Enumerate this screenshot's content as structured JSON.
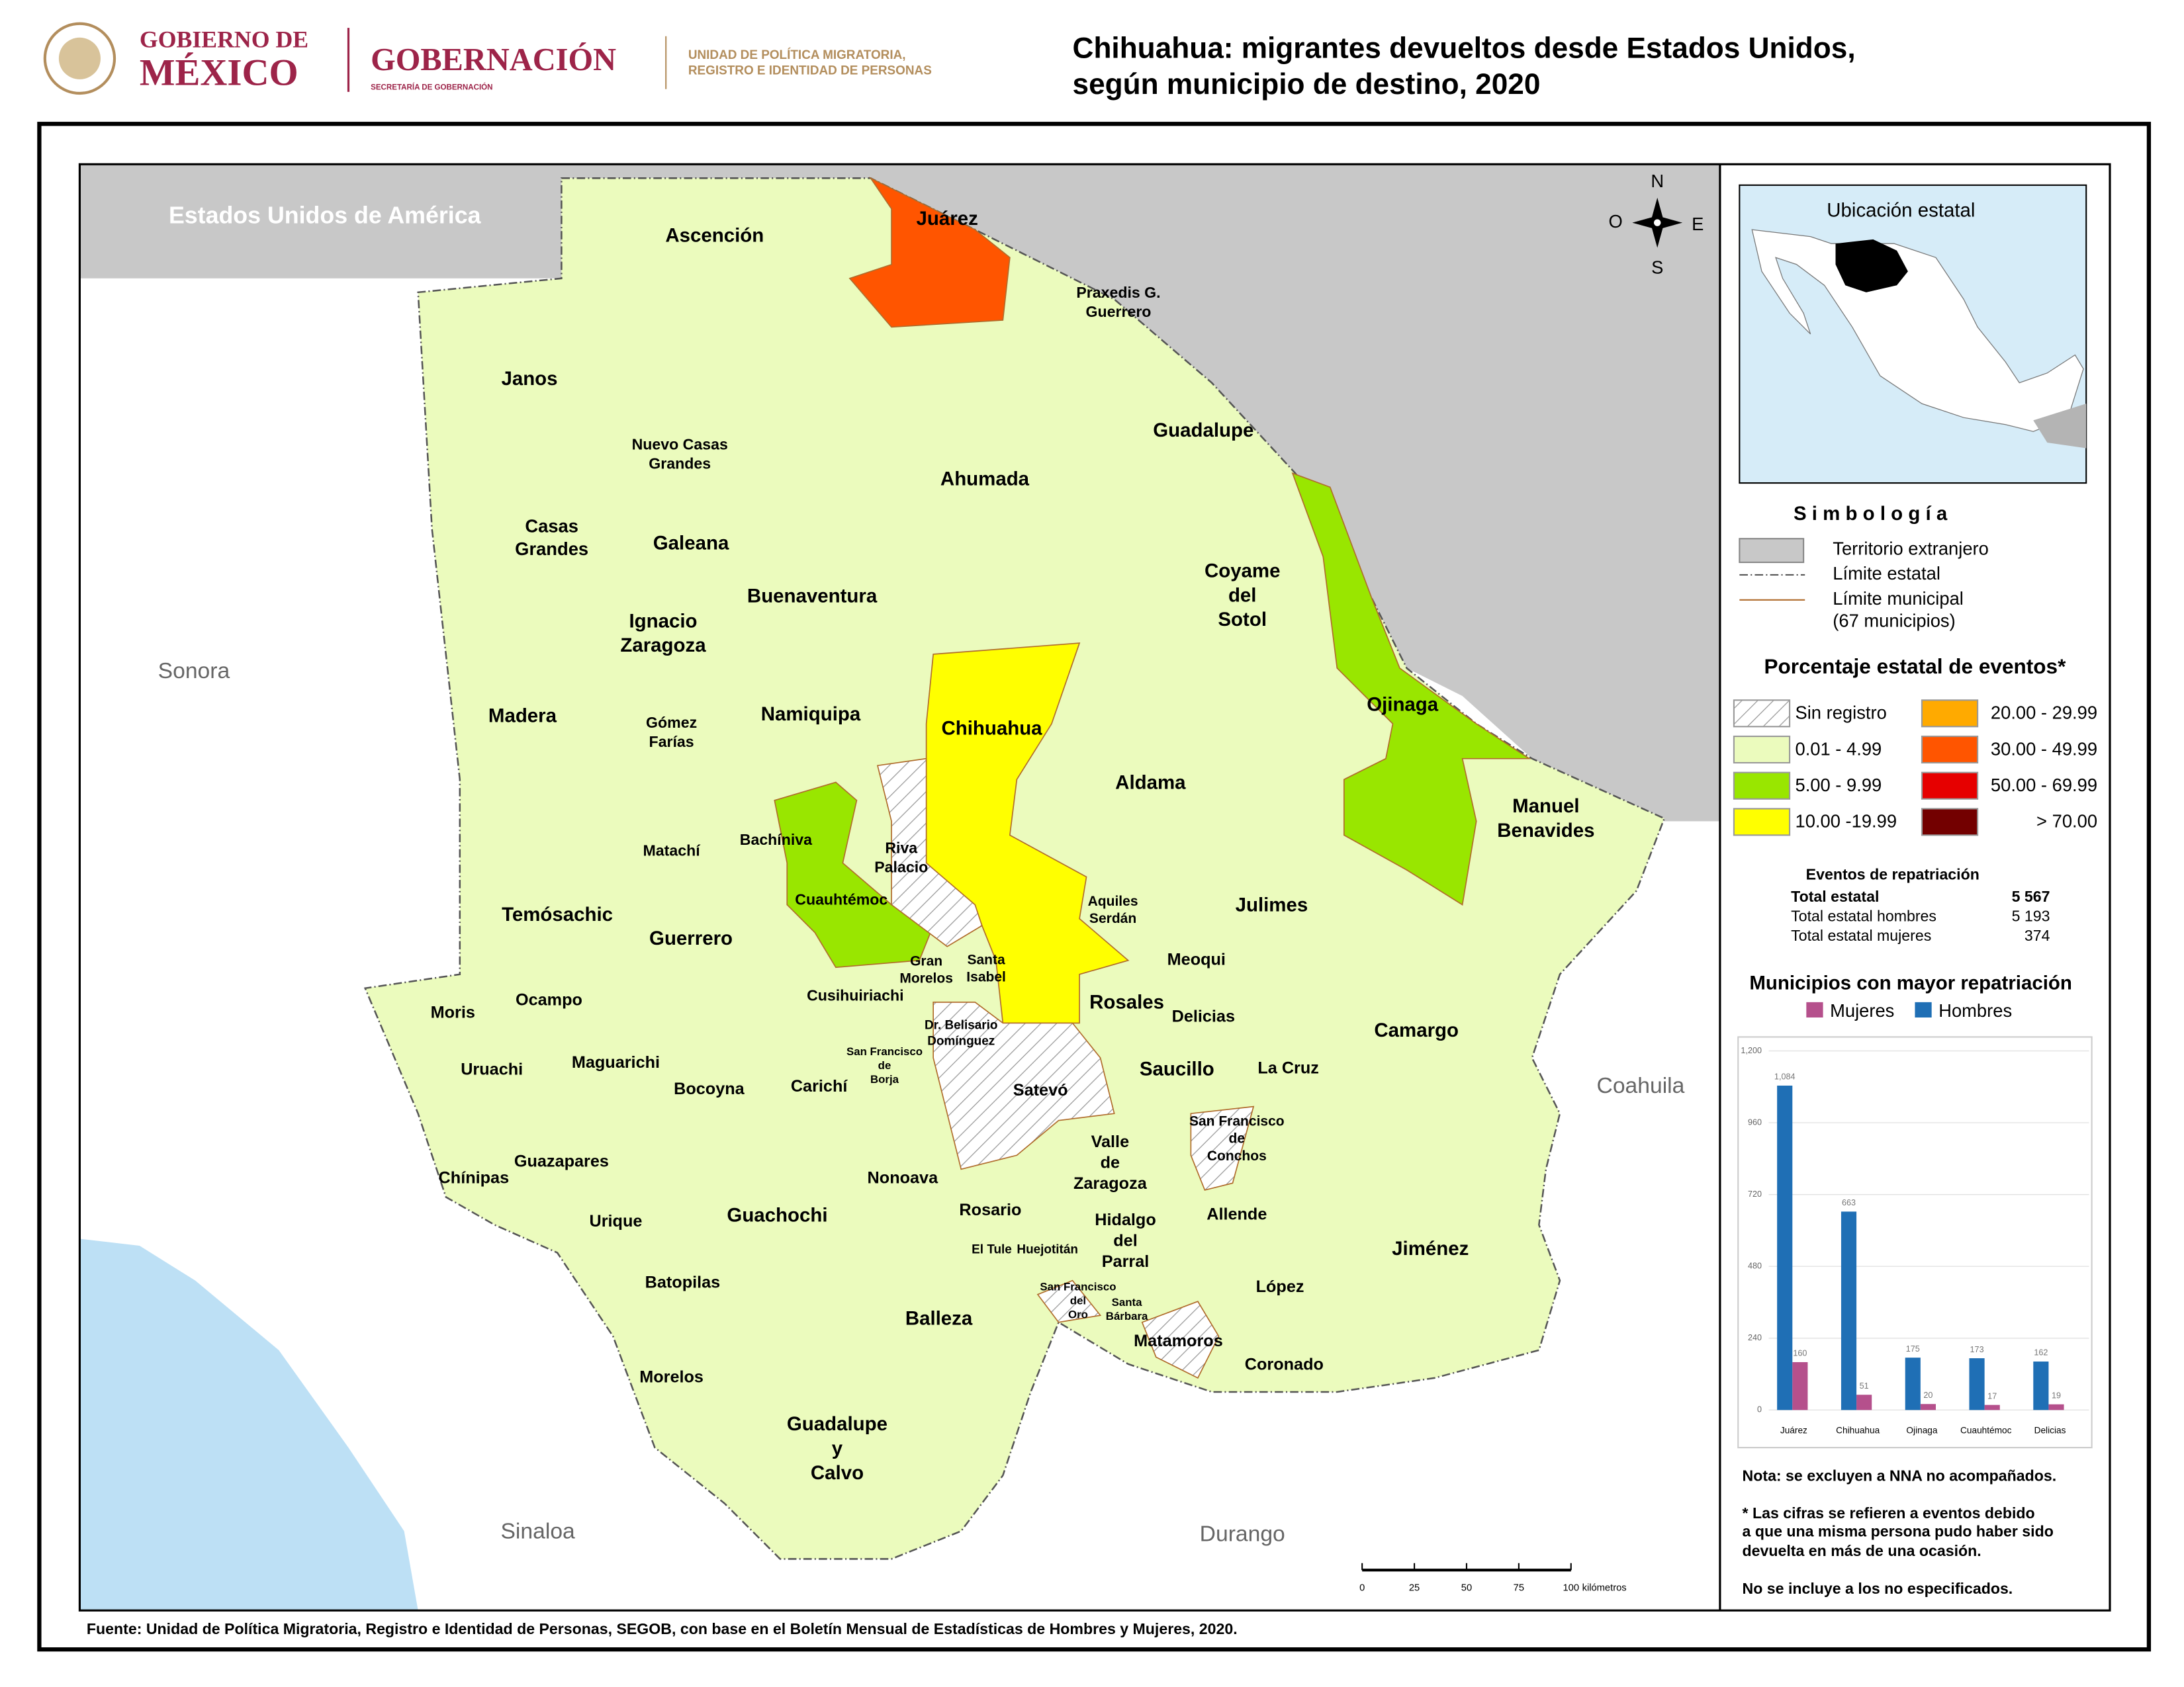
{
  "header": {
    "logo_lines": [
      "GOBIERNO DE",
      "MÉXICO"
    ],
    "secretaria": "GOBERNACIÓN",
    "secretaria_sub": "SECRETARÍA DE GOBERNACIÓN",
    "unit_lines": [
      "UNIDAD DE POLÍTICA MIGRATORIA,",
      "REGISTRO E IDENTIDAD DE PERSONAS"
    ]
  },
  "title_lines": [
    "Chihuahua: migrantes devueltos desde Estados Unidos,",
    "según municipio de destino, 2020"
  ],
  "map": {
    "neighbors": [
      "Estados Unidos de América",
      "Sonora",
      "Coahuila",
      "Sinaloa",
      "Durango"
    ],
    "compass": {
      "n": "N",
      "s": "S",
      "o": "O",
      "e": "E"
    },
    "scale": {
      "ticks": [
        0,
        25,
        50,
        75,
        100
      ],
      "unit": "kilómetros"
    },
    "municipalities": [
      [
        "Ascención"
      ],
      [
        "Juárez"
      ],
      [
        "Praxedis G.",
        "Guerrero"
      ],
      [
        "Janos"
      ],
      [
        "Nuevo Casas",
        "Grandes"
      ],
      [
        "Guadalupe"
      ],
      [
        "Ahumada"
      ],
      [
        "Casas",
        "Grandes"
      ],
      [
        "Galeana"
      ],
      [
        "Coyame",
        "del",
        "Sotol"
      ],
      [
        "Buenaventura"
      ],
      [
        "Ignacio",
        "Zaragoza"
      ],
      [
        "Madera"
      ],
      [
        "Gómez",
        "Farías"
      ],
      [
        "Namiquipa"
      ],
      [
        "Chihuahua"
      ],
      [
        "Ojinaga"
      ],
      [
        "Aldama"
      ],
      [
        "Manuel",
        "Benavides"
      ],
      [
        "Bachíniva"
      ],
      [
        "Riva",
        "Palacio"
      ],
      [
        "Matachí"
      ],
      [
        "Aquiles",
        "Serdán"
      ],
      [
        "Cuauhtémoc"
      ],
      [
        "Julimes"
      ],
      [
        "Temósachic"
      ],
      [
        "Guerrero"
      ],
      [
        "Meoqui"
      ],
      [
        "Gran",
        "Morelos"
      ],
      [
        "Santa",
        "Isabel"
      ],
      [
        "Cusihuiriachi"
      ],
      [
        "Rosales"
      ],
      [
        "Ocampo"
      ],
      [
        "Moris"
      ],
      [
        "Delicias"
      ],
      [
        "Dr. Belisario",
        "Domínguez"
      ],
      [
        "Camargo"
      ],
      [
        "San Francisco",
        "de",
        "Borja"
      ],
      [
        "Maguarichi"
      ],
      [
        "Uruachi"
      ],
      [
        "Saucillo"
      ],
      [
        "La Cruz"
      ],
      [
        "Satevó"
      ],
      [
        "Bocoyna"
      ],
      [
        "Carichí"
      ],
      [
        "San Francisco",
        "de",
        "Conchos"
      ],
      [
        "Valle",
        "de",
        "Zaragoza"
      ],
      [
        "Guazapares"
      ],
      [
        "Chínipas"
      ],
      [
        "Nonoava"
      ],
      [
        "Guachochi"
      ],
      [
        "Rosario"
      ],
      [
        "Allende"
      ],
      [
        "Hidalgo",
        "del",
        "Parral"
      ],
      [
        "Urique"
      ],
      [
        "Jiménez"
      ],
      [
        "El Tule"
      ],
      [
        "Huejotitán"
      ],
      [
        "San Francisco",
        "del",
        "Oro"
      ],
      [
        "Santa",
        "Bárbara"
      ],
      [
        "López"
      ],
      [
        "Batopilas"
      ],
      [
        "Balleza"
      ],
      [
        "Matamoros"
      ],
      [
        "Coronado"
      ],
      [
        "Morelos"
      ],
      [
        "Guadalupe",
        "y",
        "Calvo"
      ]
    ]
  },
  "inset": {
    "title": "Ubicación estatal"
  },
  "legend": {
    "title": "S i m b o l o g í a",
    "items": [
      "Territorio extranjero",
      "Límite estatal",
      "Límite municipal",
      "(67 municipios)"
    ],
    "classes_title": "Porcentaje estatal de eventos*",
    "classes": [
      {
        "label": "Sin registro"
      },
      {
        "label": "0.01  - 4.99",
        "color": "#ebfbbd"
      },
      {
        "label": "5.00  - 9.99",
        "color": "#99e600"
      },
      {
        "label": "10.00 -19.99",
        "color": "#ffff00"
      },
      {
        "label": "20.00 - 29.99",
        "color": "#ffaa00"
      },
      {
        "label": "30.00 - 49.99",
        "color": "#ff5500"
      },
      {
        "label": "50.00 - 69.99",
        "color": "#e60000"
      },
      {
        "label": "> 70.00",
        "color": "#730000"
      }
    ]
  },
  "stats": {
    "title": "Eventos de repatriación",
    "rows": [
      {
        "label": "Total estatal",
        "value": "5 567"
      },
      {
        "label": "Total estatal hombres",
        "value": "5 193"
      },
      {
        "label": "Total estatal mujeres",
        "value": "374"
      }
    ]
  },
  "chart_data": {
    "type": "bar",
    "title": "Municipios con mayor repatriación",
    "categories": [
      "Juárez",
      "Chihuahua",
      "Ojinaga",
      "Cuauhtémoc",
      "Delicias"
    ],
    "series": [
      {
        "name": "Mujeres",
        "color": "#b5508c",
        "values": [
          160,
          51,
          20,
          17,
          19
        ]
      },
      {
        "name": "Hombres",
        "color": "#1f6fb5",
        "values": [
          1084,
          663,
          175,
          173,
          162
        ],
        "value_labels": [
          "1,084",
          "663",
          "175",
          "173",
          "162"
        ]
      }
    ],
    "ylim": [
      0,
      1200
    ],
    "yticks": [
      0,
      240,
      480,
      720,
      960,
      {
        "value": 1200,
        "label": "1,200"
      }
    ],
    "grid": true
  },
  "notes": [
    "Nota: se excluyen a NNA no acompañados.",
    "* Las cifras se refieren a eventos debido",
    "a que una misma persona pudo haber sido",
    "devuelta en más de una ocasión.",
    "No se incluye a los no especificados."
  ],
  "source": "Fuente: Unidad de Política Migratoria, Registro e Identidad de Personas, SEGOB, con base en el Boletín Mensual de Estadísticas de Hombres y Mujeres, 2020."
}
